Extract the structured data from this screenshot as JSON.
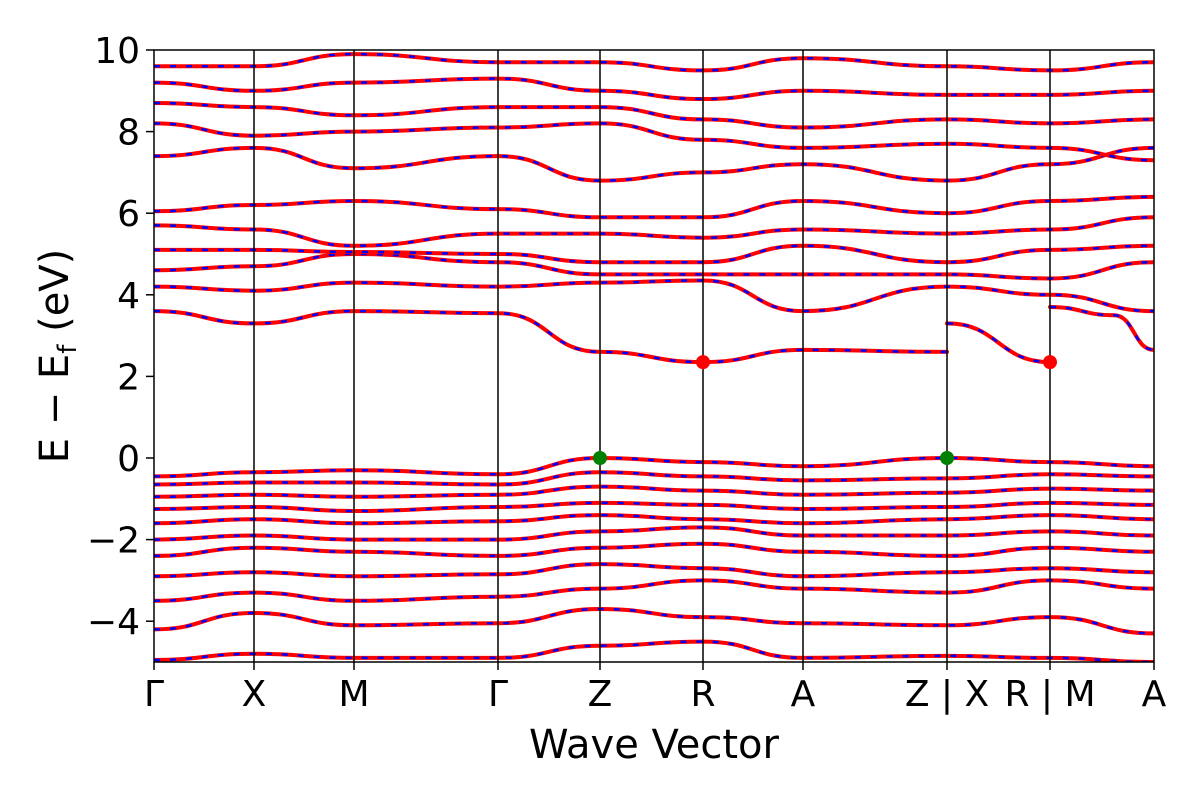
{
  "chart_data": {
    "type": "line",
    "xlabel": "Wave Vector",
    "ylabel": "E − E",
    "ylabel_sub": "f",
    "ylabel_unit": " (eV)",
    "ylim": [
      -5,
      10
    ],
    "yticks": [
      -4,
      -2,
      0,
      2,
      4,
      6,
      8,
      10
    ],
    "ytick_labels": [
      "−4",
      "−2",
      "0",
      "2",
      "4",
      "6",
      "8",
      "10"
    ],
    "grid": false,
    "colors": {
      "band": "#ff0000",
      "dash": "#0000ff",
      "vbm": "#008000",
      "cbm": "#ff0000"
    },
    "kpoints": [
      {
        "label": "Γ",
        "x": 0.0
      },
      {
        "label": "X",
        "x": 0.1
      },
      {
        "label": "M",
        "x": 0.2
      },
      {
        "label": "Γ",
        "x": 0.344
      },
      {
        "label": "Z",
        "x": 0.446
      },
      {
        "label": "R",
        "x": 0.549
      },
      {
        "label": "A",
        "x": 0.649
      },
      {
        "label": "Z | X",
        "x": 0.793
      },
      {
        "label": "R | M",
        "x": 0.896
      },
      {
        "label": "A",
        "x": 1.0
      }
    ],
    "special_points": [
      {
        "name": "VBM",
        "x": 0.446,
        "y": 0.0
      },
      {
        "name": "VBM",
        "x": 0.793,
        "y": 0.0
      },
      {
        "name": "CBM",
        "x": 0.549,
        "y": 2.35
      },
      {
        "name": "CBM",
        "x": 0.896,
        "y": 2.35
      }
    ],
    "series": [
      {
        "values": [
          [
            0,
            -4.95
          ],
          [
            0.1,
            -4.8
          ],
          [
            0.2,
            -4.9
          ],
          [
            0.344,
            -4.9
          ],
          [
            0.446,
            -4.6
          ],
          [
            0.549,
            -4.5
          ],
          [
            0.649,
            -4.9
          ],
          [
            0.793,
            -4.85
          ],
          [
            0.896,
            -4.9
          ],
          [
            1,
            -5
          ]
        ]
      },
      {
        "values": [
          [
            0,
            -4.2
          ],
          [
            0.1,
            -3.8
          ],
          [
            0.2,
            -4.1
          ],
          [
            0.344,
            -4.05
          ],
          [
            0.446,
            -3.7
          ],
          [
            0.549,
            -3.9
          ],
          [
            0.649,
            -4.05
          ],
          [
            0.793,
            -4.1
          ],
          [
            0.896,
            -3.9
          ],
          [
            1,
            -4.3
          ]
        ]
      },
      {
        "values": [
          [
            0,
            -3.5
          ],
          [
            0.1,
            -3.3
          ],
          [
            0.2,
            -3.5
          ],
          [
            0.344,
            -3.4
          ],
          [
            0.446,
            -3.2
          ],
          [
            0.549,
            -3.0
          ],
          [
            0.649,
            -3.2
          ],
          [
            0.793,
            -3.3
          ],
          [
            0.896,
            -3.0
          ],
          [
            1,
            -3.2
          ]
        ]
      },
      {
        "values": [
          [
            0,
            -2.9
          ],
          [
            0.1,
            -2.8
          ],
          [
            0.2,
            -2.9
          ],
          [
            0.344,
            -2.85
          ],
          [
            0.446,
            -2.6
          ],
          [
            0.549,
            -2.7
          ],
          [
            0.649,
            -2.9
          ],
          [
            0.793,
            -2.8
          ],
          [
            0.896,
            -2.7
          ],
          [
            1,
            -2.8
          ]
        ]
      },
      {
        "values": [
          [
            0,
            -2.4
          ],
          [
            0.1,
            -2.2
          ],
          [
            0.2,
            -2.3
          ],
          [
            0.344,
            -2.4
          ],
          [
            0.446,
            -2.2
          ],
          [
            0.549,
            -2.1
          ],
          [
            0.649,
            -2.3
          ],
          [
            0.793,
            -2.4
          ],
          [
            0.896,
            -2.2
          ],
          [
            1,
            -2.3
          ]
        ]
      },
      {
        "values": [
          [
            0,
            -2.0
          ],
          [
            0.1,
            -1.9
          ],
          [
            0.2,
            -2.0
          ],
          [
            0.344,
            -2.0
          ],
          [
            0.446,
            -1.8
          ],
          [
            0.549,
            -1.7
          ],
          [
            0.649,
            -1.9
          ],
          [
            0.793,
            -1.9
          ],
          [
            0.896,
            -1.8
          ],
          [
            1,
            -1.9
          ]
        ]
      },
      {
        "values": [
          [
            0,
            -1.6
          ],
          [
            0.1,
            -1.5
          ],
          [
            0.2,
            -1.6
          ],
          [
            0.344,
            -1.55
          ],
          [
            0.446,
            -1.4
          ],
          [
            0.549,
            -1.5
          ],
          [
            0.649,
            -1.6
          ],
          [
            0.793,
            -1.5
          ],
          [
            0.896,
            -1.4
          ],
          [
            1,
            -1.5
          ]
        ]
      },
      {
        "values": [
          [
            0,
            -1.25
          ],
          [
            0.1,
            -1.2
          ],
          [
            0.2,
            -1.3
          ],
          [
            0.344,
            -1.2
          ],
          [
            0.446,
            -1.1
          ],
          [
            0.549,
            -1.15
          ],
          [
            0.649,
            -1.25
          ],
          [
            0.793,
            -1.2
          ],
          [
            0.896,
            -1.1
          ],
          [
            1,
            -1.15
          ]
        ]
      },
      {
        "values": [
          [
            0,
            -0.95
          ],
          [
            0.1,
            -0.9
          ],
          [
            0.2,
            -0.95
          ],
          [
            0.344,
            -0.9
          ],
          [
            0.446,
            -0.7
          ],
          [
            0.549,
            -0.8
          ],
          [
            0.649,
            -0.9
          ],
          [
            0.793,
            -0.85
          ],
          [
            0.896,
            -0.75
          ],
          [
            1,
            -0.8
          ]
        ]
      },
      {
        "values": [
          [
            0,
            -0.65
          ],
          [
            0.1,
            -0.6
          ],
          [
            0.2,
            -0.6
          ],
          [
            0.344,
            -0.65
          ],
          [
            0.446,
            -0.35
          ],
          [
            0.549,
            -0.45
          ],
          [
            0.649,
            -0.55
          ],
          [
            0.793,
            -0.5
          ],
          [
            0.896,
            -0.4
          ],
          [
            1,
            -0.45
          ]
        ]
      },
      {
        "values": [
          [
            0,
            -0.45
          ],
          [
            0.1,
            -0.35
          ],
          [
            0.2,
            -0.3
          ],
          [
            0.344,
            -0.4
          ],
          [
            0.446,
            0.0
          ],
          [
            0.549,
            -0.1
          ],
          [
            0.649,
            -0.2
          ],
          [
            0.793,
            0.0
          ],
          [
            0.896,
            -0.1
          ],
          [
            1,
            -0.2
          ]
        ]
      },
      {
        "values": [
          [
            0,
            3.6
          ],
          [
            0.1,
            3.3
          ],
          [
            0.2,
            3.6
          ],
          [
            0.344,
            3.55
          ],
          [
            0.446,
            2.6
          ],
          [
            0.549,
            2.35
          ],
          [
            0.649,
            2.65
          ],
          [
            0.793,
            2.6
          ]
        ]
      },
      {
        "values": [
          [
            0.793,
            3.3
          ],
          [
            0.896,
            2.35
          ]
        ]
      },
      {
        "values": [
          [
            0.896,
            3.7
          ],
          [
            0.96,
            3.5
          ],
          [
            1,
            2.65
          ]
        ]
      },
      {
        "values": [
          [
            0,
            4.2
          ],
          [
            0.1,
            4.1
          ],
          [
            0.2,
            4.3
          ],
          [
            0.344,
            4.2
          ],
          [
            0.446,
            4.3
          ],
          [
            0.549,
            4.35
          ],
          [
            0.649,
            3.6
          ],
          [
            0.793,
            4.2
          ],
          [
            0.896,
            4.0
          ],
          [
            1,
            3.6
          ]
        ]
      },
      {
        "values": [
          [
            0,
            4.6
          ],
          [
            0.1,
            4.7
          ],
          [
            0.2,
            5.0
          ],
          [
            0.344,
            4.8
          ],
          [
            0.446,
            4.5
          ],
          [
            0.549,
            4.5
          ],
          [
            0.649,
            4.5
          ],
          [
            0.793,
            4.5
          ],
          [
            0.896,
            4.4
          ],
          [
            1,
            4.8
          ]
        ]
      },
      {
        "values": [
          [
            0,
            5.1
          ],
          [
            0.1,
            5.1
          ],
          [
            0.2,
            5.05
          ],
          [
            0.344,
            5.0
          ],
          [
            0.446,
            4.8
          ],
          [
            0.549,
            4.8
          ],
          [
            0.649,
            5.2
          ],
          [
            0.793,
            4.8
          ],
          [
            0.896,
            5.1
          ],
          [
            1,
            5.2
          ]
        ]
      },
      {
        "values": [
          [
            0,
            5.7
          ],
          [
            0.1,
            5.6
          ],
          [
            0.2,
            5.2
          ],
          [
            0.344,
            5.5
          ],
          [
            0.446,
            5.5
          ],
          [
            0.549,
            5.4
          ],
          [
            0.649,
            5.6
          ],
          [
            0.793,
            5.5
          ],
          [
            0.896,
            5.6
          ],
          [
            1,
            5.9
          ]
        ]
      },
      {
        "values": [
          [
            0,
            6.05
          ],
          [
            0.1,
            6.2
          ],
          [
            0.2,
            6.3
          ],
          [
            0.344,
            6.1
          ],
          [
            0.446,
            5.9
          ],
          [
            0.549,
            5.9
          ],
          [
            0.649,
            6.3
          ],
          [
            0.793,
            6.0
          ],
          [
            0.896,
            6.3
          ],
          [
            1,
            6.4
          ]
        ]
      },
      {
        "values": [
          [
            0,
            7.4
          ],
          [
            0.1,
            7.6
          ],
          [
            0.2,
            7.1
          ],
          [
            0.344,
            7.4
          ],
          [
            0.446,
            6.8
          ],
          [
            0.549,
            7.0
          ],
          [
            0.649,
            7.2
          ],
          [
            0.793,
            6.8
          ],
          [
            0.896,
            7.2
          ],
          [
            1,
            7.6
          ]
        ]
      },
      {
        "values": [
          [
            0,
            8.2
          ],
          [
            0.1,
            7.9
          ],
          [
            0.2,
            8.0
          ],
          [
            0.344,
            8.1
          ],
          [
            0.446,
            8.2
          ],
          [
            0.549,
            7.8
          ],
          [
            0.649,
            7.6
          ],
          [
            0.793,
            7.7
          ],
          [
            0.896,
            7.6
          ],
          [
            1,
            7.3
          ]
        ]
      },
      {
        "values": [
          [
            0,
            8.7
          ],
          [
            0.1,
            8.6
          ],
          [
            0.2,
            8.4
          ],
          [
            0.344,
            8.6
          ],
          [
            0.446,
            8.6
          ],
          [
            0.549,
            8.3
          ],
          [
            0.649,
            8.1
          ],
          [
            0.793,
            8.3
          ],
          [
            0.896,
            8.2
          ],
          [
            1,
            8.3
          ]
        ]
      },
      {
        "values": [
          [
            0,
            9.2
          ],
          [
            0.1,
            9.0
          ],
          [
            0.2,
            9.2
          ],
          [
            0.344,
            9.3
          ],
          [
            0.446,
            9.0
          ],
          [
            0.549,
            8.8
          ],
          [
            0.649,
            9.0
          ],
          [
            0.793,
            8.9
          ],
          [
            0.896,
            8.9
          ],
          [
            1,
            9.0
          ]
        ]
      },
      {
        "values": [
          [
            0,
            9.6
          ],
          [
            0.1,
            9.6
          ],
          [
            0.2,
            9.9
          ],
          [
            0.344,
            9.7
          ],
          [
            0.446,
            9.7
          ],
          [
            0.549,
            9.5
          ],
          [
            0.649,
            9.8
          ],
          [
            0.793,
            9.6
          ],
          [
            0.896,
            9.5
          ],
          [
            1,
            9.7
          ]
        ]
      }
    ]
  }
}
